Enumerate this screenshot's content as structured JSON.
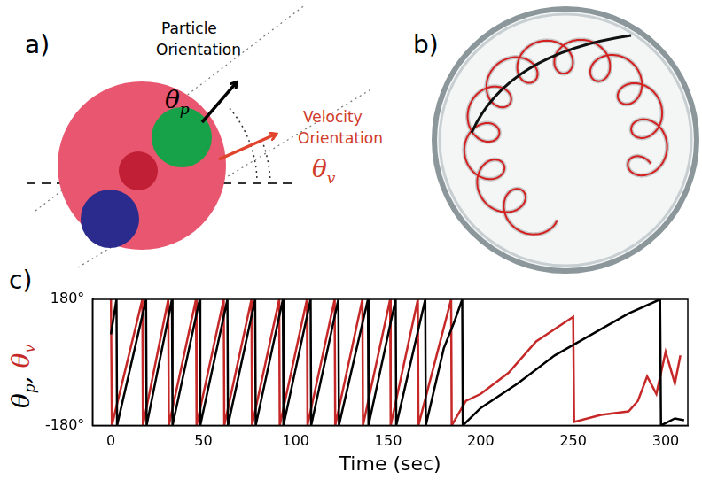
{
  "panel_a": {
    "letter": "a)",
    "particle_label": "Particle Orientation",
    "particle_symbol": "θp",
    "velocity_label": "Velocity Orientation",
    "velocity_symbol": "θv"
  },
  "panel_b": {
    "letter": "b)"
  },
  "chart_data": {
    "letter": "c)",
    "type": "line",
    "xlabel": "Time (sec)",
    "ylabel": "θp, θv",
    "xlim": [
      -10,
      312
    ],
    "xticks": [
      0,
      50,
      100,
      150,
      200,
      250,
      300
    ],
    "ylim": [
      -180,
      180
    ],
    "yticks": [
      {
        "value": -180,
        "label": "-180°"
      },
      {
        "value": 180,
        "label": "180°"
      }
    ],
    "grid": false,
    "series": [
      {
        "name": "θp",
        "color": "#000000",
        "x": [
          0,
          3,
          3.3,
          19,
          19.3,
          33,
          33.3,
          48,
          48.3,
          63,
          63.3,
          78,
          78.3,
          93,
          93.3,
          108,
          108.3,
          123,
          123.3,
          139,
          139.3,
          154,
          154.3,
          170,
          170.3,
          180,
          186,
          190,
          190.3,
          200,
          220,
          240,
          260,
          280,
          297,
          297.5,
          305,
          310
        ],
        "values": [
          80,
          180,
          -180,
          180,
          -180,
          180,
          -180,
          180,
          -180,
          180,
          -180,
          180,
          -180,
          180,
          -180,
          180,
          -180,
          180,
          -180,
          180,
          -180,
          180,
          -180,
          180,
          -180,
          40,
          120,
          180,
          -180,
          -130,
          -60,
          20,
          80,
          140,
          180,
          -180,
          -160,
          -165
        ]
      },
      {
        "name": "θv",
        "color": "#c62828",
        "x": [
          0,
          0.5,
          17,
          17.3,
          31,
          31.3,
          46,
          46.3,
          61,
          61.3,
          76,
          76.3,
          91,
          91.3,
          106,
          106.3,
          121,
          121.3,
          136,
          136.3,
          151,
          151.3,
          166,
          166.3,
          184,
          184.3,
          192,
          200,
          215,
          230,
          250,
          250.5,
          265,
          280,
          285,
          290,
          295,
          300,
          305,
          308
        ],
        "values": [
          180,
          -180,
          180,
          -180,
          180,
          -180,
          180,
          -180,
          180,
          -180,
          180,
          -180,
          180,
          -180,
          180,
          -180,
          180,
          -180,
          180,
          -180,
          180,
          -180,
          180,
          -180,
          180,
          -180,
          -110,
          -90,
          -30,
          60,
          130,
          -170,
          -150,
          -140,
          -110,
          -40,
          -90,
          30,
          -60,
          20
        ]
      }
    ]
  }
}
